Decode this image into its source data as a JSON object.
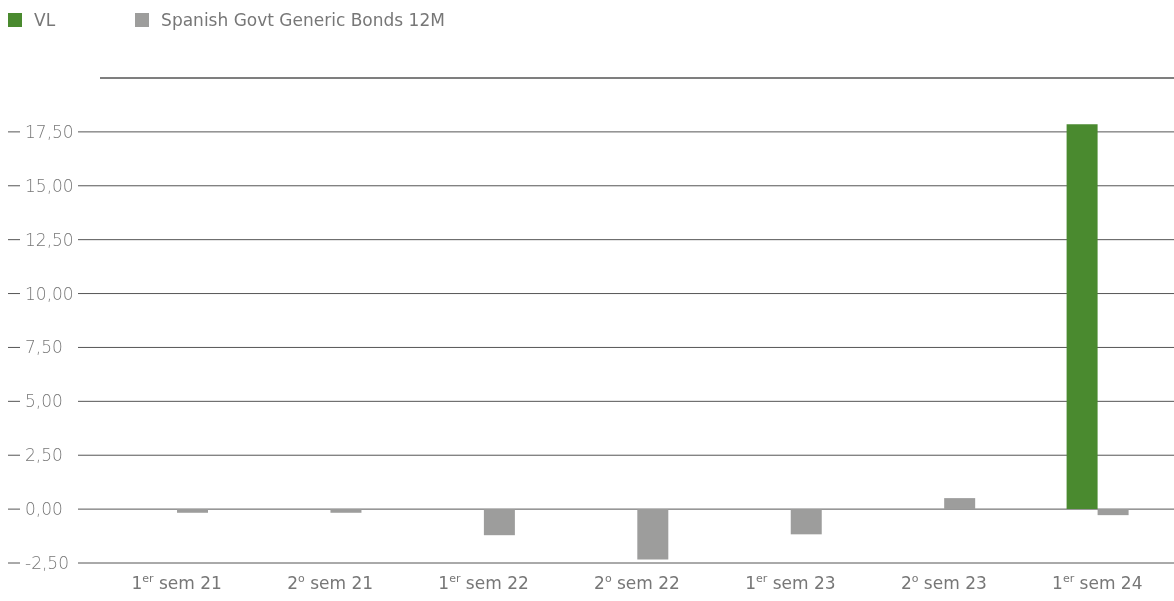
{
  "chart_data": {
    "type": "bar",
    "categories": [
      "1$^{er}$ sem 21",
      "2$^{o}$ sem 21",
      "1$^{er}$ sem 22",
      "2$^{o}$ sem 22",
      "1$^{er}$ sem 23",
      "2$^{o}$ sem 23",
      "1$^{er}$ sem 24"
    ],
    "series": [
      {
        "name": "VL",
        "color": "#4a8a2f",
        "values": [
          null,
          null,
          null,
          null,
          null,
          null,
          17.85
        ]
      },
      {
        "name": "Spanish Govt Generic Bonds 12M",
        "color": "#9d9d9c",
        "values": [
          -0.17,
          -0.17,
          -1.21,
          -2.34,
          -1.17,
          0.51,
          -0.28
        ]
      }
    ],
    "ylim": [
      -2.5,
      20
    ],
    "yticks": [
      {
        "value": -2.5,
        "label": "-2,50"
      },
      {
        "value": 0,
        "label": "0,00"
      },
      {
        "value": 2.5,
        "label": "2,50"
      },
      {
        "value": 5,
        "label": "5,00"
      },
      {
        "value": 7.5,
        "label": "7,50"
      },
      {
        "value": 10,
        "label": "10,00"
      },
      {
        "value": 12.5,
        "label": "12,50"
      },
      {
        "value": 15,
        "label": "15,00"
      },
      {
        "value": 17.5,
        "label": "17,50"
      }
    ],
    "grid": "y",
    "legend": "top left"
  }
}
